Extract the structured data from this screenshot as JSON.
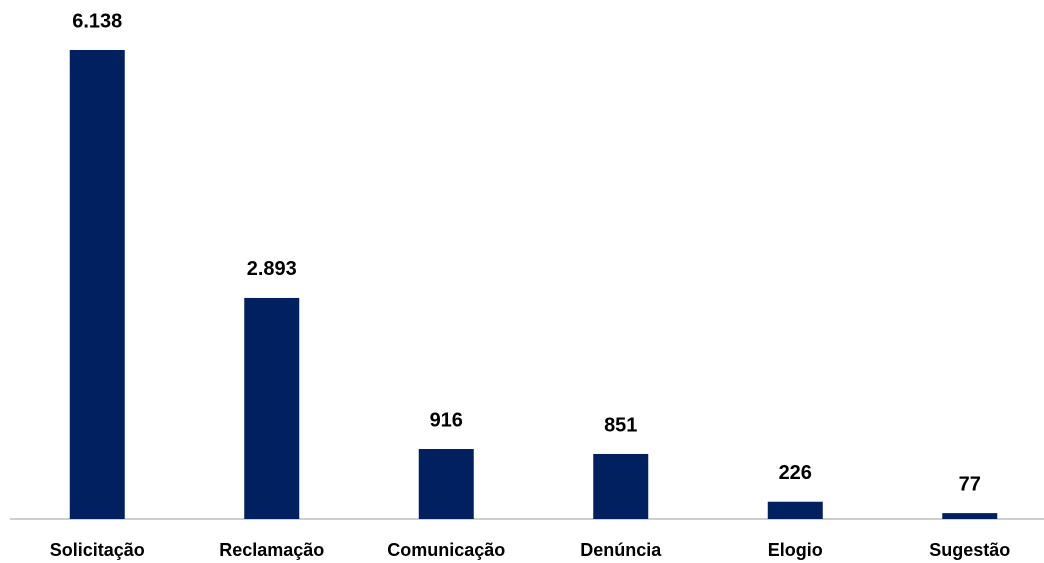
{
  "chart_data": {
    "type": "bar",
    "categories": [
      "Solicitação",
      "Reclamação",
      "Comunicação",
      "Denúncia",
      "Elogio",
      "Sugestão"
    ],
    "values": [
      6138,
      2893,
      916,
      851,
      226,
      77
    ],
    "value_labels": [
      "6.138",
      "2.893",
      "916",
      "851",
      "226",
      "77"
    ],
    "color": "#002060"
  }
}
